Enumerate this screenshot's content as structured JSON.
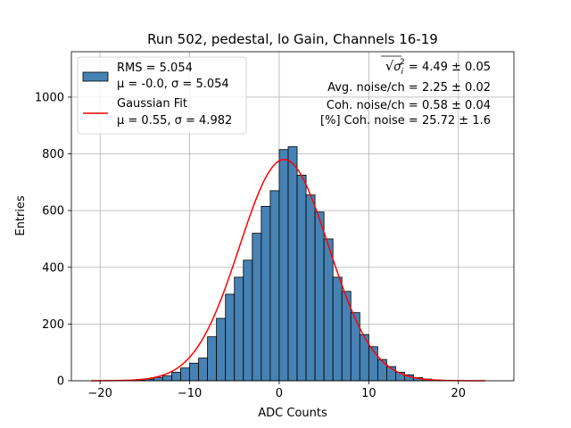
{
  "chart_data": {
    "type": "bar",
    "title": "Run 502, pedestal, lo Gain, Channels 16-19",
    "xlabel": "ADC Counts",
    "ylabel": "Entries",
    "xlim": [
      -23.2,
      26.2
    ],
    "ylim": [
      0,
      1160
    ],
    "grid": true,
    "x_ticks": [
      -20,
      -10,
      0,
      10,
      20
    ],
    "x_tick_labels": [
      "−20",
      "−10",
      "0",
      "10",
      "20"
    ],
    "y_ticks": [
      0,
      200,
      400,
      600,
      800,
      1000
    ],
    "y_tick_labels": [
      "0",
      "200",
      "400",
      "600",
      "800",
      "1000"
    ],
    "histogram": {
      "name": "RMS = 5.054",
      "name_line2": "μ = -0.0, σ = 5.054",
      "color": "#4682b4",
      "edge_color": "#000000",
      "bin_edges": [
        -21,
        -20,
        -19,
        -18,
        -17,
        -16,
        -15,
        -14,
        -13,
        -12,
        -11,
        -10,
        -9,
        -8,
        -7,
        -6,
        -5,
        -4,
        -3,
        -2,
        -1,
        0,
        1,
        2,
        3,
        4,
        5,
        6,
        7,
        8,
        9,
        10,
        11,
        12,
        13,
        14,
        15,
        16,
        17,
        18,
        19,
        20,
        21,
        22,
        23,
        24
      ],
      "values": [
        0,
        0,
        0,
        1,
        2,
        3,
        6,
        12,
        17,
        30,
        45,
        62,
        80,
        155,
        220,
        305,
        365,
        425,
        520,
        615,
        670,
        815,
        825,
        725,
        655,
        595,
        500,
        365,
        315,
        240,
        163,
        120,
        75,
        50,
        30,
        21,
        11,
        6,
        3,
        1,
        0,
        0,
        0,
        0,
        0
      ]
    },
    "fit": {
      "name": "Gaussian Fit",
      "name_line2": "μ = 0.55, σ = 4.982",
      "color": "#ff0000",
      "mu": 0.55,
      "sigma": 4.982,
      "amplitude": 780,
      "x_range": [
        -21,
        23
      ]
    },
    "legend_position": "upper-left",
    "annotations": [
      {
        "prefix": "√",
        "radicand": "σ",
        "sup": "2",
        "sub": "i",
        "text": " = 4.49 ± 0.05"
      },
      {
        "text": "Avg. noise/ch = 2.25 ± 0.02"
      },
      {
        "text": "Coh. noise/ch = 0.58 ± 0.04"
      },
      {
        "text": "[%] Coh. noise = 25.72 ± 1.6"
      }
    ]
  }
}
